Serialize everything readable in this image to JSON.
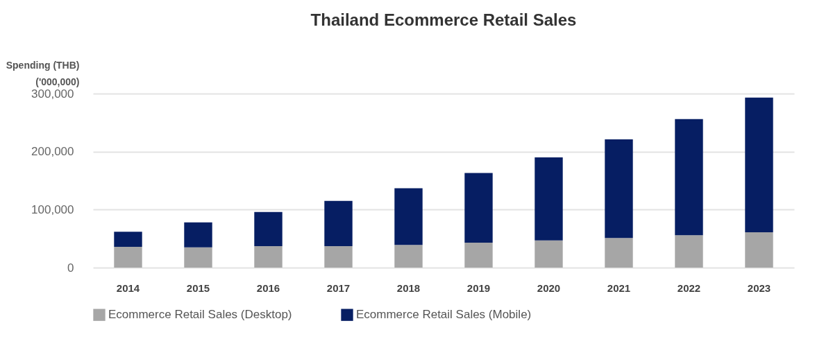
{
  "chart_data": {
    "type": "bar",
    "title": "Thailand Ecommerce Retail Sales",
    "ylabel": "Spending (THB)\n('000,000)",
    "categories": [
      "2014",
      "2015",
      "2016",
      "2017",
      "2018",
      "2019",
      "2020",
      "2021",
      "2022",
      "2023"
    ],
    "stacked": true,
    "series": [
      {
        "name": "Ecommerce Retail Sales (Desktop)",
        "color": "#a6a6a6",
        "values": [
          36000,
          35000,
          37000,
          37000,
          39000,
          43000,
          47000,
          51000,
          56000,
          61000
        ]
      },
      {
        "name": "Ecommerce Retail Sales (Mobile)",
        "color": "#061e63",
        "values": [
          26000,
          43000,
          59000,
          78000,
          98000,
          120000,
          143000,
          170000,
          200000,
          232000
        ]
      }
    ],
    "ylim": [
      0,
      300000
    ],
    "yticks": [
      0,
      {
        "value": 100000,
        "label": "100,000"
      },
      {
        "value": 200000,
        "label": "200,000"
      },
      {
        "value": 300000,
        "label": "300,000"
      }
    ],
    "grid": "y",
    "legend": "bottom"
  }
}
